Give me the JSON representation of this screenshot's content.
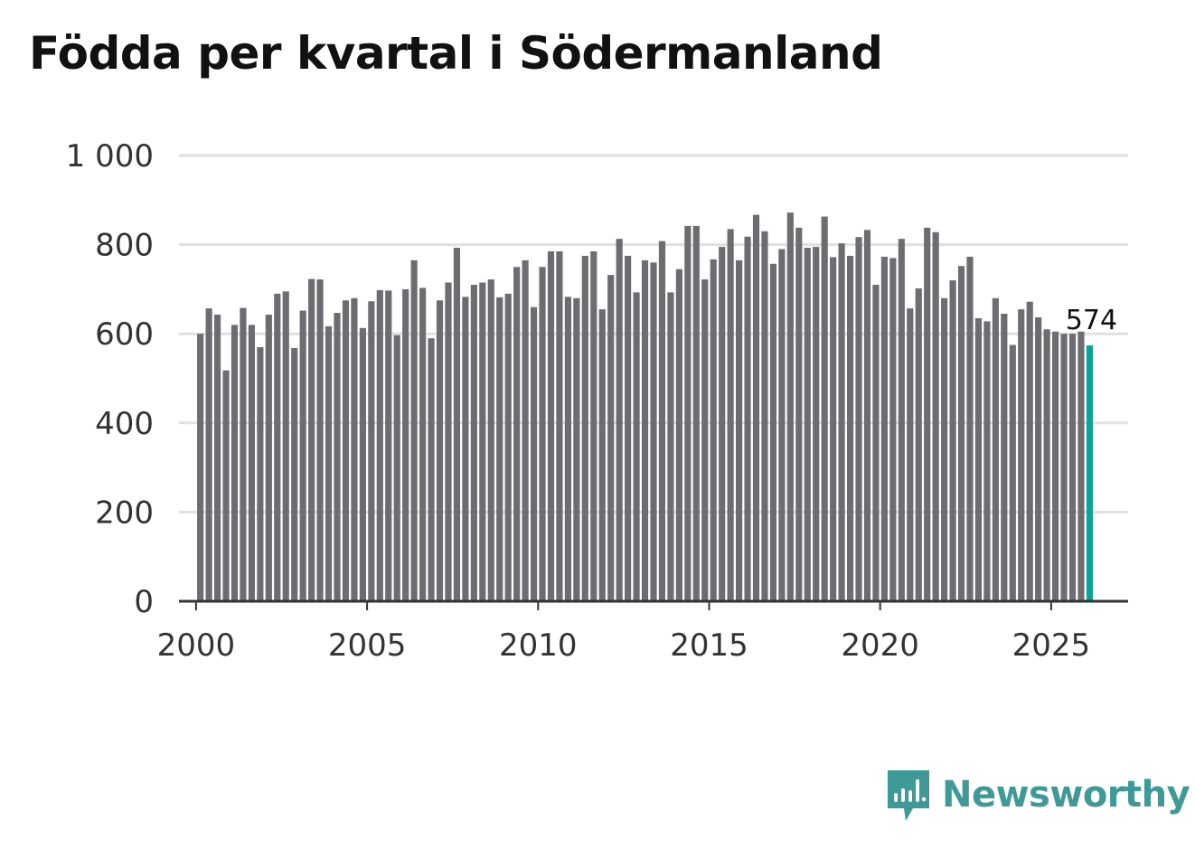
{
  "title": "Födda per kvartal i Södermanland",
  "brand": {
    "name": "Newsworthy",
    "color": "#3f9a97",
    "icon": "newsworthy-logo-icon"
  },
  "colors": {
    "bar": "#6d6d71",
    "highlight": "#11a195",
    "grid": "#e0e0e0",
    "axis": "#333333",
    "text": "#333333"
  },
  "chart_data": {
    "type": "bar",
    "title": "Födda per kvartal i Södermanland",
    "xlabel": "",
    "ylabel": "",
    "ylim": [
      0,
      1000
    ],
    "yticks": [
      0,
      200,
      400,
      600,
      800,
      1000
    ],
    "ytick_labels": [
      "0",
      "200",
      "400",
      "600",
      "800",
      "1 000"
    ],
    "xticks": [
      2000,
      2005,
      2010,
      2015,
      2020,
      2025
    ],
    "xtick_labels": [
      "2000",
      "2005",
      "2010",
      "2015",
      "2020",
      "2025"
    ],
    "xlim": [
      1999.5,
      2027.25
    ],
    "x_start": 2000.125,
    "x_step": 0.25,
    "values": [
      600,
      657,
      643,
      518,
      620,
      658,
      620,
      570,
      643,
      690,
      695,
      568,
      652,
      723,
      722,
      617,
      647,
      675,
      680,
      613,
      673,
      698,
      697,
      597,
      700,
      765,
      703,
      590,
      675,
      715,
      793,
      683,
      710,
      715,
      722,
      682,
      690,
      750,
      765,
      660,
      750,
      785,
      785,
      683,
      680,
      775,
      785,
      655,
      732,
      813,
      775,
      693,
      765,
      760,
      808,
      693,
      745,
      842,
      842,
      722,
      767,
      795,
      835,
      765,
      818,
      867,
      830,
      757,
      790,
      872,
      838,
      793,
      795,
      863,
      772,
      803,
      775,
      817,
      833,
      710,
      773,
      770,
      813,
      657,
      702,
      838,
      828,
      680,
      720,
      752,
      773,
      635,
      628,
      680,
      645,
      575,
      655,
      672,
      637,
      610,
      605,
      600,
      600,
      605,
      574
    ],
    "highlight_index": 104,
    "annotation": "574"
  }
}
